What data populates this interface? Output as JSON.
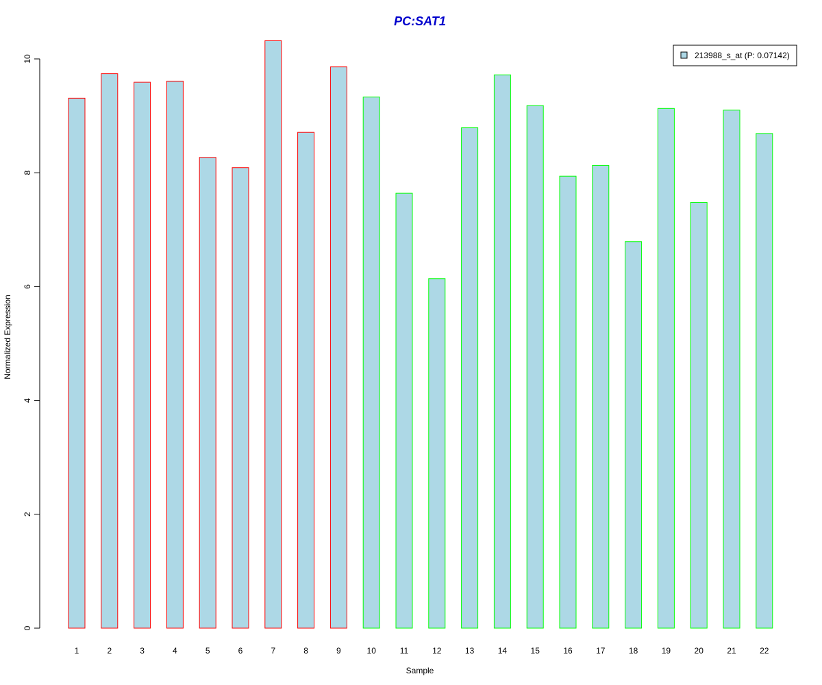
{
  "chart_data": {
    "type": "bar",
    "title": "PC:SAT1",
    "xlabel": "Sample",
    "ylabel": "Normalized Expression",
    "categories": [
      "1",
      "2",
      "3",
      "4",
      "5",
      "6",
      "7",
      "8",
      "9",
      "10",
      "11",
      "12",
      "13",
      "14",
      "15",
      "16",
      "17",
      "18",
      "19",
      "20",
      "21",
      "22"
    ],
    "series": [
      {
        "name": "213988_s_at (P: 0.07142)",
        "values": [
          9.31,
          9.74,
          9.59,
          9.61,
          8.27,
          8.09,
          10.32,
          8.71,
          9.86,
          9.33,
          7.64,
          6.14,
          8.79,
          9.72,
          9.18,
          7.94,
          8.13,
          6.79,
          9.13,
          7.48,
          9.1,
          8.69
        ]
      }
    ],
    "edge_colors": [
      "#ff0000",
      "#ff0000",
      "#ff0000",
      "#ff0000",
      "#ff0000",
      "#ff0000",
      "#ff0000",
      "#ff0000",
      "#ff0000",
      "#00ff00",
      "#00ff00",
      "#00ff00",
      "#00ff00",
      "#00ff00",
      "#00ff00",
      "#00ff00",
      "#00ff00",
      "#00ff00",
      "#00ff00",
      "#00ff00",
      "#00ff00",
      "#00ff00"
    ],
    "yticks": [
      "0",
      "2",
      "4",
      "6",
      "8",
      "10"
    ],
    "ylim": [
      0,
      10.4
    ],
    "grid": false,
    "legend_position": "top-right",
    "colors": {
      "bar_fill": "#add8e6",
      "title": "#0000cc",
      "group_1_edge": "#ff0000",
      "group_2_edge": "#00ff00"
    }
  }
}
